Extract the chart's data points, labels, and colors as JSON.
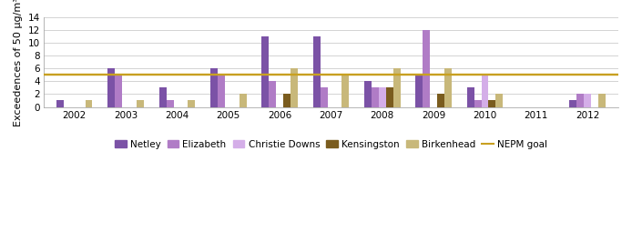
{
  "years": [
    2002,
    2003,
    2004,
    2005,
    2006,
    2007,
    2008,
    2009,
    2010,
    2011,
    2012
  ],
  "series": {
    "Netley": [
      1,
      6,
      3,
      6,
      11,
      11,
      4,
      5,
      3,
      0,
      1
    ],
    "Elizabeth": [
      0,
      5,
      1,
      5,
      4,
      3,
      3,
      12,
      1,
      0,
      2
    ],
    "Christie Downs": [
      0,
      0,
      0,
      0,
      0,
      0,
      3,
      0,
      5,
      0,
      2
    ],
    "Kensingston": [
      0,
      0,
      0,
      0,
      2,
      0,
      3,
      2,
      1,
      0,
      0
    ],
    "Birkenhead": [
      1,
      1,
      1,
      2,
      6,
      5,
      6,
      6,
      2,
      0,
      2
    ]
  },
  "colors": {
    "Netley": "#7B52A6",
    "Elizabeth": "#B07CC6",
    "Christie Downs": "#D4AEE8",
    "Kensingston": "#7A5C1E",
    "Birkenhead": "#C8B87A"
  },
  "nepm_goal": 5,
  "nepm_color": "#C8A020",
  "nepm_linewidth": 1.0,
  "ylabel": "Exceedences of 50 μg/m³",
  "ylim": [
    0,
    14
  ],
  "yticks": [
    0,
    2,
    4,
    6,
    8,
    10,
    12,
    14
  ],
  "bar_width": 0.14,
  "figsize": [
    6.94,
    2.77
  ],
  "dpi": 100,
  "background_color": "#ffffff",
  "grid_color": "#cccccc",
  "spine_color": "#aaaaaa",
  "tick_fontsize": 7.5,
  "ylabel_fontsize": 8,
  "legend_fontsize": 7.5
}
